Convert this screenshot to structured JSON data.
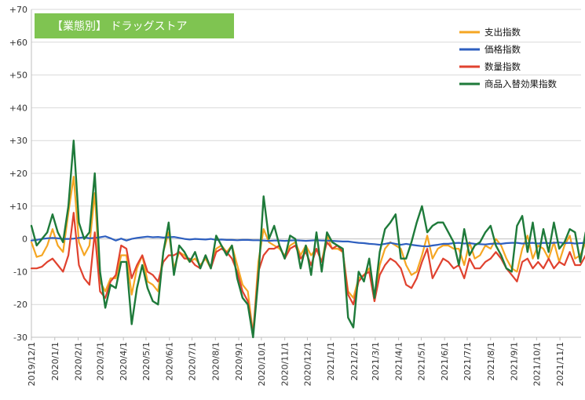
{
  "chart_data": {
    "type": "line",
    "title": "【業態別】 ドラッグストア",
    "title_color": "#7fc451",
    "ylim": [
      -30,
      70
    ],
    "yticks": [
      -30,
      -20,
      -10,
      0,
      10,
      20,
      30,
      40,
      50,
      60,
      70
    ],
    "ytick_labels": [
      "-30",
      "-20",
      "-10",
      "0",
      "+10",
      "+20",
      "+30",
      "+40",
      "+50",
      "+60",
      "+70"
    ],
    "grid": "horizontal",
    "legend_position": "top-right",
    "x_start": "2019-12-01",
    "x_end": "2021-11-29",
    "xtick_dates": [
      "2019-12-01",
      "2020-01-01",
      "2020-02-01",
      "2020-03-01",
      "2020-04-01",
      "2020-05-01",
      "2020-06-01",
      "2020-07-01",
      "2020-08-01",
      "2020-09-01",
      "2020-10-01",
      "2020-11-01",
      "2020-12-01",
      "2021-01-01",
      "2021-02-01",
      "2021-03-01",
      "2021-04-01",
      "2021-05-01",
      "2021-06-01",
      "2021-07-01",
      "2021-08-01",
      "2021-09-01",
      "2021-10-01",
      "2021-11-01"
    ],
    "xtick_labels": [
      "2019/12/1",
      "2020/1/1",
      "2020/2/1",
      "2020/3/1",
      "2020/4/1",
      "2020/5/1",
      "2020/6/1",
      "2020/7/1",
      "2020/8/1",
      "2020/9/1",
      "2020/10/1",
      "2020/11/1",
      "2020/12/1",
      "2021/1/1",
      "2021/2/1",
      "2021/3/1",
      "2021/4/1",
      "2021/5/1",
      "2021/6/1",
      "2021/7/1",
      "2021/8/1",
      "2021/9/1",
      "2021/10/1",
      "2021/11/1"
    ],
    "series": [
      {
        "name": "支出指数",
        "color": "#f5a623",
        "values": [
          -1,
          -5.5,
          -5,
          -2,
          3,
          -2,
          -4,
          8,
          19,
          -1,
          -5,
          -2,
          14,
          -13,
          -16,
          -12,
          -12,
          -5,
          -5,
          -17,
          -9,
          -5,
          -13,
          -14,
          -16,
          -4,
          2,
          -9,
          -4,
          -5,
          -7,
          -6,
          -8,
          -6,
          -9,
          -3,
          -2,
          -4,
          -2,
          -8,
          -14,
          -16,
          -29,
          -7,
          3,
          -1,
          -2,
          -3,
          -5,
          -2,
          -1,
          -5,
          -2,
          -5,
          -3,
          -7,
          1,
          -3,
          -3,
          -4,
          -16,
          -18,
          -12,
          -11,
          -9,
          -19,
          -8,
          -3,
          -1,
          -2,
          -3,
          -8,
          -11,
          -10,
          -5,
          1,
          -6,
          -3,
          -2,
          -2,
          -3,
          -3,
          -8,
          -1,
          -6,
          -5,
          -2,
          -3,
          0,
          -2,
          -6,
          -9,
          -10,
          -3,
          1,
          -6,
          -2,
          -3,
          -6,
          -1,
          -7,
          -2,
          1,
          -6,
          -5,
          -1,
          -2,
          -6,
          -2
        ],
        "dates": []
      },
      {
        "name": "価格指数",
        "color": "#2e5fbf",
        "values": [
          -0.5,
          -0.3,
          0,
          0.2,
          0.3,
          0.2,
          0,
          0,
          0.1,
          0.3,
          0.5,
          0.2,
          0.3,
          0.5,
          0.8,
          0.2,
          -0.5,
          0.1,
          -0.5,
          0,
          0.3,
          0.5,
          0.7,
          0.5,
          0.6,
          0.4,
          0.5,
          0.6,
          0.3,
          0,
          -0.2,
          0,
          -0.1,
          -0.2,
          0,
          -0.3,
          -0.2,
          -0.3,
          -0.3,
          -0.4,
          -0.3,
          -0.3,
          -0.4,
          -0.4,
          -0.5,
          -0.6,
          -0.5,
          -0.5,
          -0.6,
          -0.5,
          -0.4,
          -0.5,
          -0.6,
          -0.5,
          -0.4,
          -0.5,
          -0.5,
          -0.6,
          -0.7,
          -0.8,
          -0.8,
          -1,
          -1.2,
          -1.3,
          -1.5,
          -1.6,
          -1.8,
          -1.5,
          -1.2,
          -1.5,
          -1.8,
          -1.5,
          -1.8,
          -2,
          -2.2,
          -2.3,
          -2,
          -1.8,
          -1.5,
          -1.5,
          -1.3,
          -1.2,
          -1.4,
          -1.3,
          -1.5,
          -1.6,
          -1.7,
          -1.5,
          -1.4,
          -1.5,
          -1.3,
          -1.2,
          -1.2,
          -1.4,
          -1.3,
          -1.2,
          -1.4,
          -1.2,
          -1.3,
          -1.2,
          -1.1,
          -1.3,
          -1.2,
          -1.4,
          -1.3,
          -1.2,
          -1.2,
          -1.3,
          -1.1
        ],
        "dates": []
      },
      {
        "name": "数量指数",
        "color": "#e0422f",
        "values": [
          -9,
          -9,
          -8.5,
          -7,
          -6,
          -8,
          -10,
          -5,
          8,
          -8,
          -12,
          -14,
          2,
          -16,
          -18,
          -13,
          -11,
          -2,
          -3,
          -12,
          -8,
          -5,
          -10,
          -11,
          -13,
          -7,
          -5,
          -5,
          -4,
          -6,
          -6,
          -8,
          -9,
          -5,
          -9,
          -4,
          -3,
          -4,
          -6,
          -10,
          -16,
          -19,
          -29,
          -10,
          -5,
          -3,
          -3,
          -2,
          -6,
          -3,
          -2,
          -6,
          -4,
          -8,
          -3,
          -7,
          -1,
          -3,
          -2,
          -4,
          -17,
          -20,
          -13,
          -11,
          -10,
          -19,
          -11,
          -8,
          -6,
          -7,
          -9,
          -14,
          -15,
          -12,
          -7,
          -3,
          -12,
          -9,
          -6,
          -7,
          -9,
          -8,
          -12,
          -6,
          -9,
          -9,
          -7,
          -6,
          -4,
          -6,
          -9,
          -11,
          -13,
          -7,
          -6,
          -9,
          -7,
          -9,
          -6,
          -9,
          -7,
          -8,
          -4,
          -8,
          -8,
          -5,
          -6,
          -10,
          -6
        ],
        "dates": []
      },
      {
        "name": "商品入替効果指数",
        "color": "#1e7a3a",
        "values": [
          4,
          -2,
          0,
          2,
          7.5,
          2,
          -1,
          10,
          30,
          5,
          0,
          2,
          20,
          -10,
          -21,
          -14,
          -15,
          -7,
          -7,
          -26,
          -15,
          -8,
          -15,
          -19,
          -20,
          -4,
          5,
          -11,
          -2,
          -4,
          -7,
          -4,
          -9,
          -5,
          -9,
          1,
          -2,
          -5,
          -2,
          -12,
          -18,
          -20,
          -30,
          -12,
          13,
          0,
          4,
          -2,
          -6,
          1,
          0,
          -9,
          -2,
          -11,
          2,
          -10,
          2,
          -1,
          -2,
          -3,
          -24,
          -27,
          -10,
          -13,
          -6,
          -18,
          -4,
          3,
          5,
          7.5,
          -6,
          -6,
          -1,
          5,
          10,
          2,
          4,
          5,
          5,
          2,
          -1,
          -8,
          3,
          -5,
          -2,
          -1,
          2,
          4,
          -2,
          -5,
          -9,
          -10,
          4,
          7,
          -4,
          5,
          -6,
          3,
          -4,
          5,
          -3,
          -1,
          3,
          2,
          -7,
          2
        ],
        "dates": []
      }
    ]
  }
}
